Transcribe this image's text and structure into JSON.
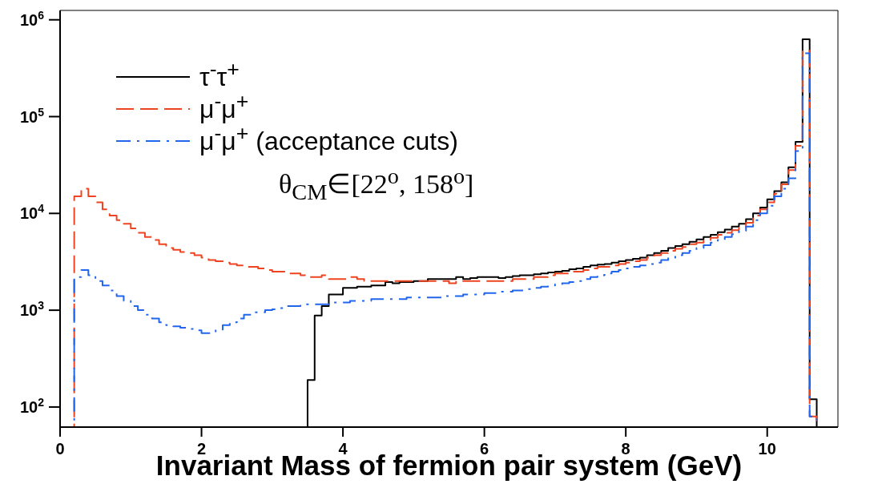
{
  "chart_data": {
    "type": "histogram",
    "xlabel": "Invariant Mass of fermion pair system (GeV)",
    "bins": [
      0,
      0.1,
      0.2,
      0.3,
      0.4,
      0.5,
      0.6,
      0.7,
      0.8,
      0.9,
      1,
      1.1,
      1.2,
      1.3,
      1.4,
      1.5,
      1.6,
      1.7,
      1.8,
      1.9,
      2,
      2.1,
      2.2,
      2.3,
      2.4,
      2.5,
      2.6,
      2.7,
      2.8,
      2.9,
      3,
      3.1,
      3.2,
      3.3,
      3.4,
      3.5,
      3.6,
      3.7,
      3.8,
      3.9,
      4,
      4.1,
      4.2,
      4.3,
      4.4,
      4.5,
      4.6,
      4.7,
      4.8,
      4.9,
      5,
      5.1,
      5.2,
      5.3,
      5.4,
      5.5,
      5.6,
      5.7,
      5.8,
      5.9,
      6,
      6.1,
      6.2,
      6.3,
      6.4,
      6.5,
      6.6,
      6.7,
      6.8,
      6.9,
      7,
      7.1,
      7.2,
      7.3,
      7.4,
      7.5,
      7.6,
      7.7,
      7.8,
      7.9,
      8,
      8.1,
      8.2,
      8.3,
      8.4,
      8.5,
      8.6,
      8.7,
      8.8,
      8.9,
      9,
      9.1,
      9.2,
      9.3,
      9.4,
      9.5,
      9.6,
      9.7,
      9.8,
      9.9,
      10,
      10.1,
      10.2,
      10.3,
      10.4,
      10.5,
      10.6,
      10.7,
      10.8,
      10.9,
      11
    ],
    "series": [
      {
        "name": "τ$^{-}$τ$^{+}$",
        "color": "#000000",
        "line_style": "solid",
        "values": [
          null,
          null,
          null,
          null,
          null,
          null,
          null,
          null,
          null,
          null,
          null,
          null,
          null,
          null,
          null,
          null,
          null,
          null,
          null,
          null,
          null,
          null,
          null,
          null,
          null,
          null,
          null,
          null,
          null,
          null,
          null,
          null,
          null,
          null,
          null,
          190,
          880,
          1100,
          1450,
          1450,
          1700,
          1700,
          1750,
          1750,
          1800,
          1800,
          1950,
          1900,
          1950,
          1950,
          2000,
          2000,
          2100,
          2100,
          2100,
          2100,
          2200,
          2100,
          2150,
          2200,
          2200,
          2200,
          2150,
          2200,
          2250,
          2300,
          2300,
          2350,
          2400,
          2450,
          2500,
          2550,
          2650,
          2700,
          2800,
          2900,
          2950,
          3000,
          3100,
          3200,
          3300,
          3400,
          3500,
          3700,
          3900,
          4100,
          4400,
          4600,
          4800,
          5100,
          5400,
          5700,
          6000,
          6400,
          6800,
          7300,
          7800,
          8700,
          10000,
          11500,
          14000,
          17000,
          21000,
          30000,
          55000,
          630000,
          120,
          null,
          null,
          null
        ]
      },
      {
        "name": "μ$^{-}$μ$^{+}$",
        "color": "#ee4422",
        "line_style": "dashed",
        "values": [
          null,
          null,
          15000,
          18000,
          15000,
          13000,
          11000,
          9500,
          8500,
          7800,
          7000,
          6300,
          5700,
          5300,
          4800,
          4400,
          4200,
          4000,
          3900,
          3700,
          3500,
          3300,
          3200,
          3100,
          3000,
          2900,
          2800,
          2800,
          2700,
          2600,
          2500,
          2500,
          2400,
          2400,
          2300,
          2200,
          2200,
          2300,
          2100,
          2100,
          2100,
          2200,
          2100,
          2000,
          2000,
          2000,
          2000,
          2000,
          2000,
          2000,
          2000,
          2000,
          2000,
          2000,
          2000,
          1900,
          2000,
          2000,
          2000,
          2000,
          2000,
          2000,
          2000,
          2000,
          2100,
          2100,
          2100,
          2200,
          2200,
          2300,
          2400,
          2400,
          2500,
          2500,
          2600,
          2700,
          2800,
          2800,
          2900,
          3000,
          3100,
          3200,
          3300,
          3500,
          3700,
          3900,
          4100,
          4300,
          4500,
          4800,
          5000,
          5300,
          5600,
          6000,
          6300,
          6700,
          7100,
          8000,
          9500,
          11000,
          13000,
          16000,
          20000,
          28000,
          50000,
          480000,
          80,
          null,
          null,
          null
        ]
      },
      {
        "name": "μ$^{-}$μ$^{+}$ (acceptance cuts)",
        "color": "#2266ee",
        "line_style": "dashdot",
        "values": [
          null,
          null,
          2200,
          2600,
          2300,
          2000,
          1800,
          1600,
          1400,
          1250,
          1100,
          1000,
          900,
          820,
          750,
          700,
          680,
          660,
          640,
          620,
          580,
          580,
          630,
          700,
          750,
          820,
          900,
          950,
          950,
          1000,
          1020,
          1050,
          1100,
          1100,
          1150,
          1150,
          1150,
          1150,
          1200,
          1200,
          1200,
          1250,
          1250,
          1250,
          1300,
          1300,
          1300,
          1300,
          1300,
          1350,
          1350,
          1350,
          1350,
          1350,
          1400,
          1400,
          1400,
          1450,
          1450,
          1450,
          1500,
          1500,
          1550,
          1550,
          1600,
          1600,
          1650,
          1700,
          1750,
          1800,
          1850,
          1900,
          1950,
          2000,
          2100,
          2200,
          2300,
          2400,
          2500,
          2600,
          2700,
          2800,
          2900,
          3000,
          3100,
          3300,
          3500,
          3700,
          3900,
          4100,
          4400,
          4700,
          5000,
          5300,
          5700,
          6100,
          6600,
          7300,
          8500,
          10000,
          12000,
          15000,
          18000,
          23000,
          44000,
          450000,
          80,
          null,
          null,
          null
        ]
      }
    ],
    "annotations": [
      "θ$_{CM}$∈[22$^{o}$, 158$^{o}$]"
    ],
    "xlim": [
      0,
      11
    ],
    "xticks": [
      0,
      2,
      4,
      6,
      8,
      10
    ],
    "ylim": [
      62,
      1250000
    ],
    "yticks": [
      {
        "value": 100,
        "label": "10$^{2}$"
      },
      {
        "value": 1000,
        "label": "10$^{3}$"
      },
      {
        "value": 10000,
        "label": "10$^{4}$"
      },
      {
        "value": 100000,
        "label": "10$^{5}$"
      },
      {
        "value": 1000000,
        "label": "10$^{6}$"
      }
    ],
    "log": "y",
    "grid": false,
    "legend": "top left"
  }
}
